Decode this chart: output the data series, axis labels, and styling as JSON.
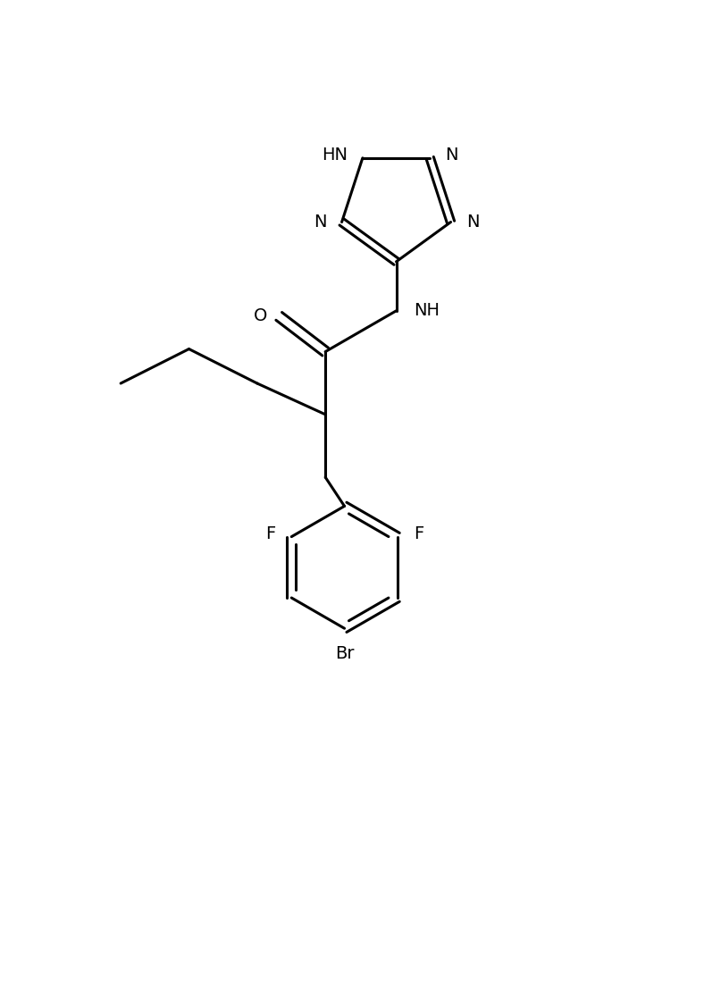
{
  "bg_color": "#ffffff",
  "line_color": "#000000",
  "line_width": 2.2,
  "font_size": 14,
  "fig_width": 7.88,
  "fig_height": 11.18,
  "xlim": [
    0,
    10
  ],
  "ylim": [
    0,
    14
  ]
}
